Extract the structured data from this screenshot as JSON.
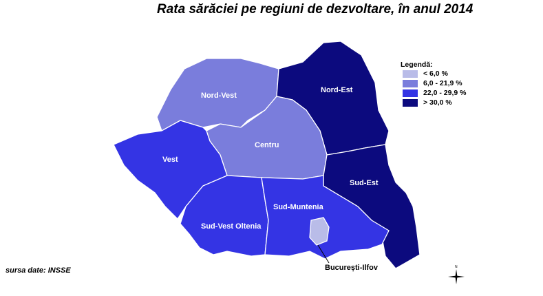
{
  "title": "Rata sărăciei pe regiuni de dezvoltare, în anul 2014",
  "legend": {
    "title": "Legendă:",
    "items": [
      {
        "label": "< 6,0 %",
        "color": "#b9bce8"
      },
      {
        "label": "6,0 - 21,9 %",
        "color": "#7a7ddc"
      },
      {
        "label": "22,0 - 29,9 %",
        "color": "#3434e4"
      },
      {
        "label": "> 30,0 %",
        "color": "#0c0a7e"
      }
    ]
  },
  "regions": [
    {
      "name": "Nord-Vest",
      "class": "6,0 - 21,9 %"
    },
    {
      "name": "Nord-Est",
      "class": "> 30,0 %"
    },
    {
      "name": "Centru",
      "class": "6,0 - 21,9 %"
    },
    {
      "name": "Vest",
      "class": "22,0 - 29,9 %"
    },
    {
      "name": "Sud-Est",
      "class": "> 30,0 %"
    },
    {
      "name": "Sud-Muntenia",
      "class": "22,0 - 29,9 %"
    },
    {
      "name": "Sud-Vest Oltenia",
      "class": "22,0 - 29,9 %"
    },
    {
      "name": "București-Ilfov",
      "class": "< 6,0 %"
    }
  ],
  "source": "sursa date: INSSE",
  "compass_label": "N"
}
